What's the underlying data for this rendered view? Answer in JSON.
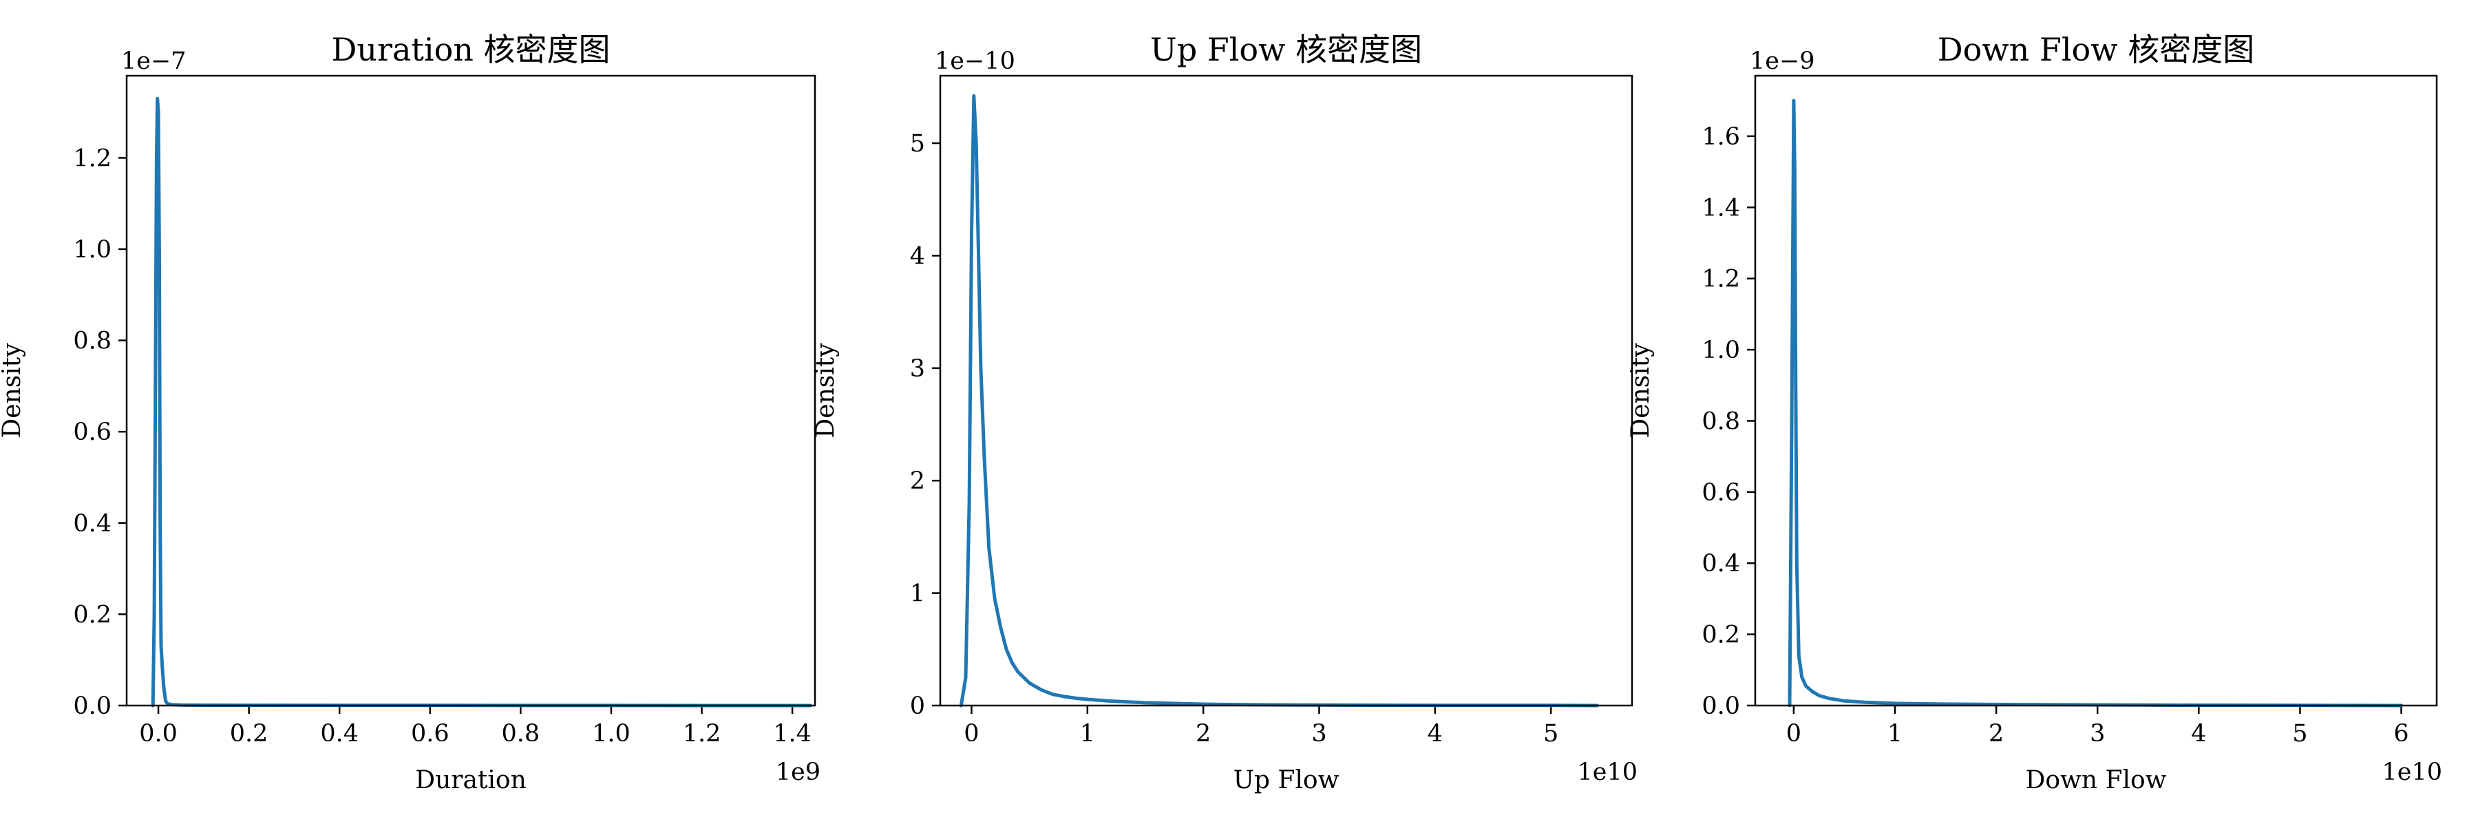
{
  "style": {
    "line_color": "#1f77b4",
    "background": "#ffffff",
    "axes_color": "#000000"
  },
  "chart_data": [
    {
      "type": "line",
      "title": "Duration 核密度图",
      "xlabel": "Duration",
      "ylabel": "Density",
      "x_offset_label": "1e9",
      "y_offset_label": "1e−7",
      "xlim": [
        -0.07,
        1.45
      ],
      "ylim": [
        0,
        1.38
      ],
      "xticks": [
        0.0,
        0.2,
        0.4,
        0.6,
        0.8,
        1.0,
        1.2,
        1.4
      ],
      "xtick_labels": [
        "0.0",
        "0.2",
        "0.4",
        "0.6",
        "0.8",
        "1.0",
        "1.2",
        "1.4"
      ],
      "yticks": [
        0.0,
        0.2,
        0.4,
        0.6,
        0.8,
        1.0,
        1.2
      ],
      "ytick_labels": [
        "0.0",
        "0.2",
        "0.4",
        "0.6",
        "0.8",
        "1.0",
        "1.2"
      ],
      "grid": false,
      "series": [
        {
          "x": [
            -0.012,
            -0.009,
            -0.006,
            -0.004,
            -0.002,
            0.0,
            0.002,
            0.004,
            0.006,
            0.009,
            0.012,
            0.016,
            0.02,
            0.03,
            0.05,
            0.1,
            0.2,
            0.4,
            0.6,
            0.8,
            1.0,
            1.2,
            1.44
          ],
          "y": [
            0.0,
            0.2,
            0.8,
            1.2,
            1.33,
            1.3,
            1.0,
            0.4,
            0.13,
            0.08,
            0.04,
            0.01,
            0.004,
            0.002,
            0.001,
            0.0008,
            0.0006,
            0.0004,
            0.0003,
            0.0002,
            0.0001,
            5e-05,
            0.0
          ]
        }
      ]
    },
    {
      "type": "line",
      "title": "Up Flow 核密度图",
      "xlabel": "Up Flow",
      "ylabel": "Density",
      "x_offset_label": "1e10",
      "y_offset_label": "1e−10",
      "xlim": [
        -0.27,
        5.7
      ],
      "ylim": [
        0,
        5.6
      ],
      "xticks": [
        0,
        1,
        2,
        3,
        4,
        5
      ],
      "xtick_labels": [
        "0",
        "1",
        "2",
        "3",
        "4",
        "5"
      ],
      "yticks": [
        0,
        1,
        2,
        3,
        4,
        5
      ],
      "ytick_labels": [
        "0",
        "1",
        "2",
        "3",
        "4",
        "5"
      ],
      "grid": false,
      "series": [
        {
          "x": [
            -0.09,
            -0.05,
            -0.02,
            0.0,
            0.02,
            0.04,
            0.06,
            0.08,
            0.11,
            0.15,
            0.2,
            0.25,
            0.3,
            0.35,
            0.4,
            0.5,
            0.6,
            0.7,
            0.8,
            0.9,
            1.0,
            1.2,
            1.5,
            2.0,
            2.5,
            3.0,
            4.0,
            5.0,
            5.4
          ],
          "y": [
            0.0,
            0.25,
            1.8,
            4.2,
            5.42,
            5.0,
            4.0,
            3.0,
            2.2,
            1.4,
            0.95,
            0.7,
            0.5,
            0.38,
            0.3,
            0.2,
            0.14,
            0.1,
            0.08,
            0.065,
            0.055,
            0.04,
            0.025,
            0.012,
            0.007,
            0.004,
            0.002,
            0.001,
            0.0
          ]
        }
      ]
    },
    {
      "type": "line",
      "title": "Down Flow 核密度图",
      "xlabel": "Down Flow",
      "ylabel": "Density",
      "x_offset_label": "1e10",
      "y_offset_label": "1e−9",
      "xlim": [
        -0.38,
        6.35
      ],
      "ylim": [
        0,
        1.77
      ],
      "xticks": [
        0,
        1,
        2,
        3,
        4,
        5,
        6
      ],
      "xtick_labels": [
        "0",
        "1",
        "2",
        "3",
        "4",
        "5",
        "6"
      ],
      "yticks": [
        0.0,
        0.2,
        0.4,
        0.6,
        0.8,
        1.0,
        1.2,
        1.4,
        1.6
      ],
      "ytick_labels": [
        "0.0",
        "0.2",
        "0.4",
        "0.6",
        "0.8",
        "1.0",
        "1.2",
        "1.4",
        "1.6"
      ],
      "grid": false,
      "series": [
        {
          "x": [
            -0.04,
            -0.02,
            0.0,
            0.01,
            0.02,
            0.03,
            0.05,
            0.08,
            0.12,
            0.18,
            0.25,
            0.35,
            0.5,
            0.7,
            1.0,
            1.5,
            2.0,
            3.0,
            4.0,
            5.0,
            6.0
          ],
          "y": [
            0.0,
            0.8,
            1.7,
            1.5,
            0.9,
            0.4,
            0.14,
            0.08,
            0.055,
            0.04,
            0.028,
            0.02,
            0.013,
            0.009,
            0.006,
            0.004,
            0.003,
            0.002,
            0.001,
            0.0005,
            0.0
          ]
        }
      ]
    }
  ]
}
